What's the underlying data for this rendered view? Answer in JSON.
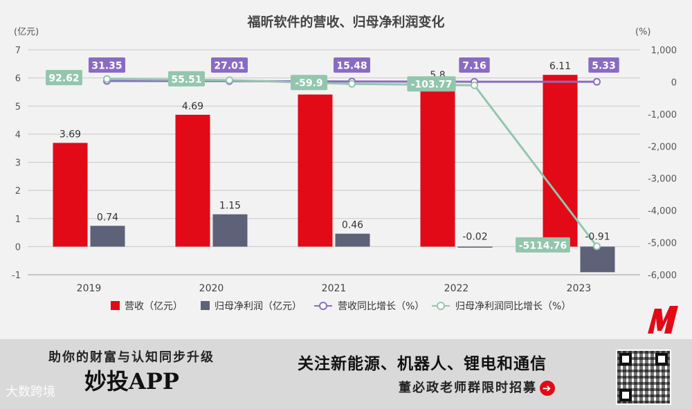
{
  "chart_data": {
    "type": "bar",
    "title": "福昕软件的营收、归母净利润变化",
    "categories": [
      "2019",
      "2020",
      "2021",
      "2022",
      "2023"
    ],
    "y_left": {
      "unit_label": "(亿元)",
      "ticks": [
        "7",
        "6",
        "5",
        "4",
        "3",
        "2",
        "1",
        "0",
        "-1"
      ],
      "range": [
        -1,
        7
      ]
    },
    "y_right": {
      "unit_label": "(%)",
      "ticks": [
        "1,000",
        "0",
        "-1,000",
        "-2,000",
        "-3,000",
        "-4,000",
        "-5,000",
        "-6,000"
      ],
      "range": [
        -6000,
        1000
      ]
    },
    "series": [
      {
        "name": "营收（亿元）",
        "type": "bar",
        "axis": "left",
        "color": "#e20a17",
        "values": [
          3.69,
          4.69,
          5.41,
          5.8,
          6.11
        ],
        "labels": [
          "3.69",
          "4.69",
          "",
          "5.8",
          "6.11"
        ]
      },
      {
        "name": "归母净利润（亿元）",
        "type": "bar",
        "axis": "left",
        "color": "#5e6278",
        "values": [
          0.74,
          1.15,
          0.46,
          -0.02,
          -0.91
        ],
        "labels": [
          "0.74",
          "1.15",
          "0.46",
          "-0.02",
          "-0.91"
        ]
      },
      {
        "name": "营收同比增长（%）",
        "type": "line",
        "axis": "right",
        "color": "#8a6bc2",
        "values": [
          31.35,
          27.01,
          15.48,
          7.16,
          5.33
        ],
        "labels": [
          "31.35",
          "27.01",
          "15.48",
          "7.16",
          "5.33"
        ]
      },
      {
        "name": "归母净利润同比增长（%）",
        "type": "line",
        "axis": "right",
        "color": "#93c6ad",
        "values": [
          92.62,
          55.51,
          -59.9,
          -103.77,
          -5114.76
        ],
        "labels": [
          "92.62",
          "55.51",
          "-59.9",
          "-103.77",
          "-5114.76"
        ]
      }
    ],
    "legend": "bottom"
  },
  "banner": {
    "slogan": "助你的财富与认知同步升级",
    "app_name": "妙投APP",
    "focus": "关注新能源、机器人、锂电和通信",
    "recruit": "董必政老师群限时招募",
    "watermark": "大数跨境"
  }
}
